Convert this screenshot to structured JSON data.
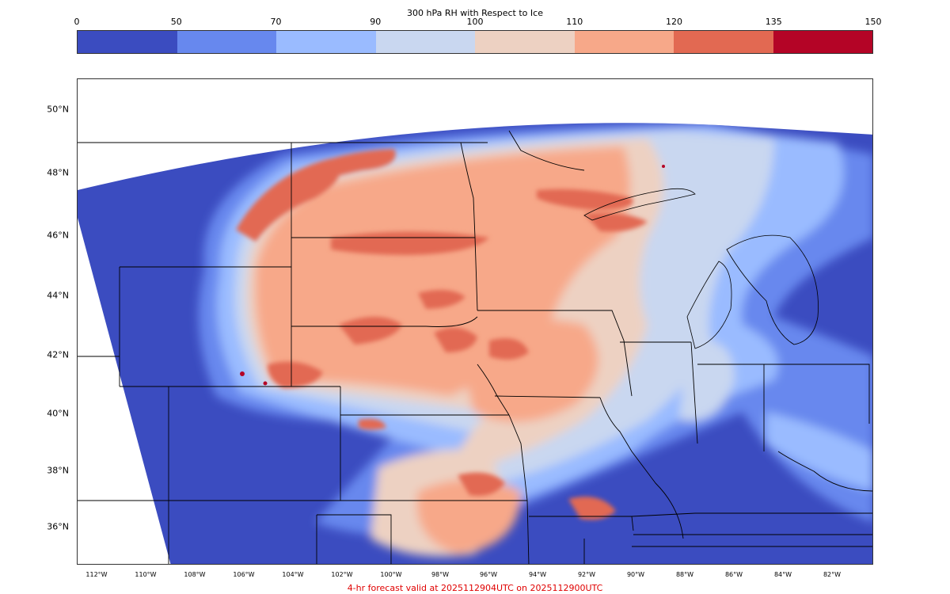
{
  "colorbar": {
    "title": "300 hPa RH with Respect to Ice",
    "ticks": [
      "0",
      "50",
      "70",
      "90",
      "100",
      "110",
      "120",
      "135",
      "150"
    ],
    "colors": [
      "#3b4cc0",
      "#6788ee",
      "#9abbff",
      "#c9d7f0",
      "#edd1c2",
      "#f7a889",
      "#e26952",
      "#b40426"
    ]
  },
  "map": {
    "lat_labels": [
      "50°N",
      "48°N",
      "46°N",
      "44°N",
      "42°N",
      "40°N",
      "38°N",
      "36°N"
    ],
    "lon_labels": [
      "112°W",
      "110°W",
      "108°W",
      "106°W",
      "104°W",
      "102°W",
      "100°W",
      "98°W",
      "96°W",
      "94°W",
      "92°W",
      "90°W",
      "88°W",
      "86°W",
      "84°W",
      "82°W"
    ],
    "border_color": "#000000"
  },
  "footer": {
    "text": "4-hr forecast valid at 2025112904UTC on 2025112900UTC",
    "color": "#e00000"
  }
}
